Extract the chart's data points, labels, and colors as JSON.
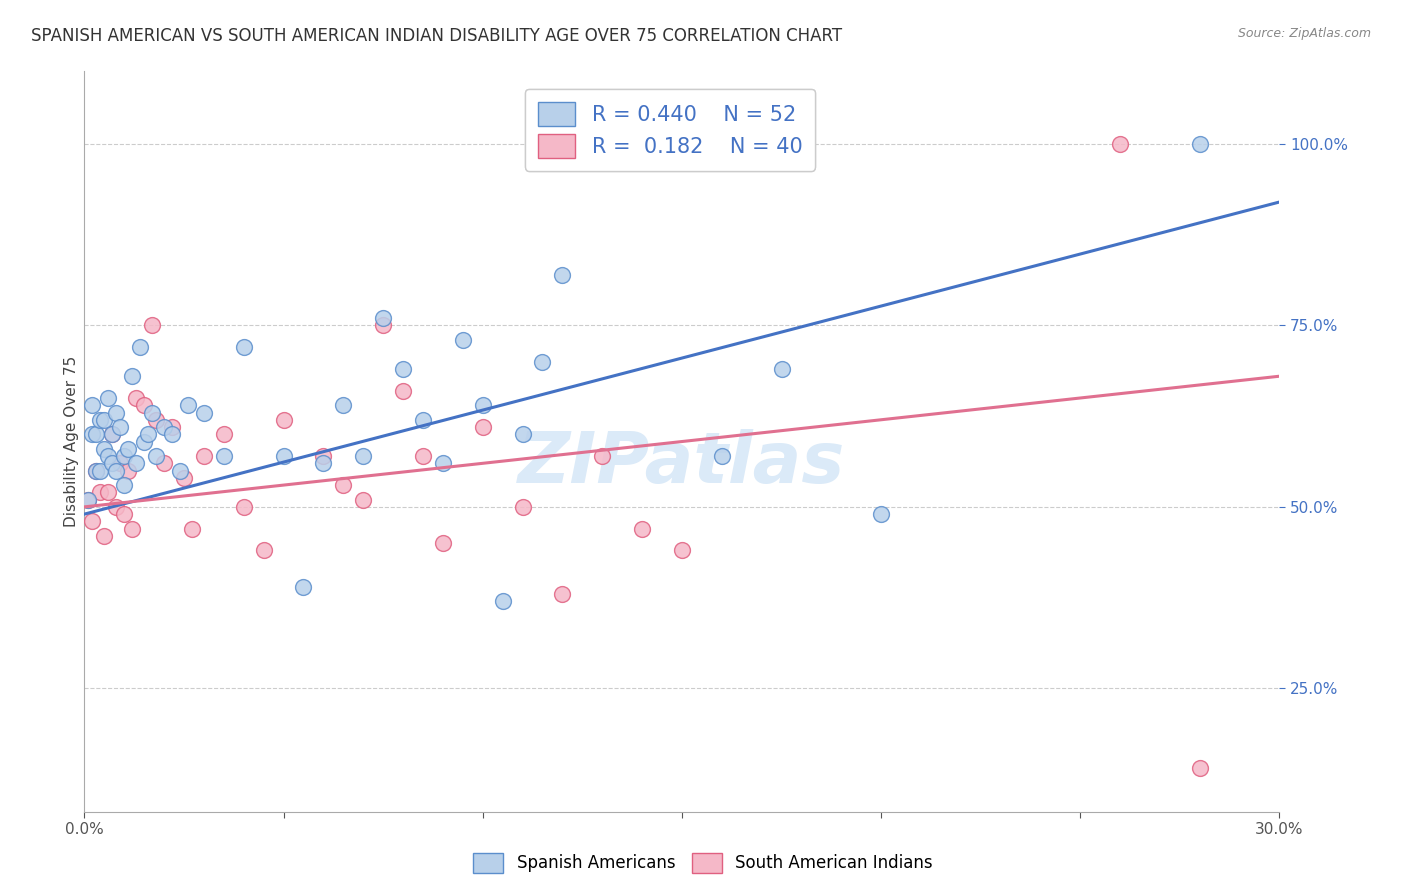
{
  "title": "SPANISH AMERICAN VS SOUTH AMERICAN INDIAN DISABILITY AGE OVER 75 CORRELATION CHART",
  "source": "Source: ZipAtlas.com",
  "ylabel": "Disability Age Over 75",
  "xlim": [
    0.0,
    0.3
  ],
  "ylim": [
    0.08,
    1.1
  ],
  "xtick_vals": [
    0.0,
    0.05,
    0.1,
    0.15,
    0.2,
    0.25,
    0.3
  ],
  "xtick_labels_shown": [
    "0.0%",
    "",
    "",
    "",
    "",
    "",
    "30.0%"
  ],
  "ytick_vals": [
    0.25,
    0.5,
    0.75,
    1.0
  ],
  "ytick_labels": [
    "25.0%",
    "50.0%",
    "75.0%",
    "100.0%"
  ],
  "blue_color": "#b8d0ea",
  "pink_color": "#f5b8c8",
  "blue_edge_color": "#5b8ecc",
  "pink_edge_color": "#e06080",
  "blue_line_color": "#4472c4",
  "pink_line_color": "#e07090",
  "blue_R": 0.44,
  "blue_N": 52,
  "pink_R": 0.182,
  "pink_N": 40,
  "legend_label_blue": "Spanish Americans",
  "legend_label_pink": "South American Indians",
  "watermark": "ZIPatlas",
  "blue_x": [
    0.001,
    0.002,
    0.002,
    0.003,
    0.003,
    0.004,
    0.004,
    0.005,
    0.005,
    0.006,
    0.006,
    0.007,
    0.007,
    0.008,
    0.008,
    0.009,
    0.01,
    0.01,
    0.011,
    0.012,
    0.013,
    0.014,
    0.015,
    0.016,
    0.017,
    0.018,
    0.02,
    0.022,
    0.024,
    0.026,
    0.03,
    0.035,
    0.04,
    0.05,
    0.055,
    0.06,
    0.065,
    0.07,
    0.075,
    0.08,
    0.085,
    0.09,
    0.095,
    0.1,
    0.105,
    0.11,
    0.115,
    0.12,
    0.16,
    0.175,
    0.2,
    0.28
  ],
  "blue_y": [
    0.51,
    0.6,
    0.64,
    0.55,
    0.6,
    0.62,
    0.55,
    0.62,
    0.58,
    0.65,
    0.57,
    0.6,
    0.56,
    0.63,
    0.55,
    0.61,
    0.53,
    0.57,
    0.58,
    0.68,
    0.56,
    0.72,
    0.59,
    0.6,
    0.63,
    0.57,
    0.61,
    0.6,
    0.55,
    0.64,
    0.63,
    0.57,
    0.72,
    0.57,
    0.39,
    0.56,
    0.64,
    0.57,
    0.76,
    0.69,
    0.62,
    0.56,
    0.73,
    0.64,
    0.37,
    0.6,
    0.7,
    0.82,
    0.57,
    0.69,
    0.49,
    1.0
  ],
  "pink_x": [
    0.001,
    0.002,
    0.003,
    0.004,
    0.005,
    0.006,
    0.007,
    0.008,
    0.009,
    0.01,
    0.011,
    0.012,
    0.013,
    0.015,
    0.017,
    0.018,
    0.02,
    0.022,
    0.025,
    0.027,
    0.03,
    0.035,
    0.04,
    0.045,
    0.05,
    0.06,
    0.065,
    0.07,
    0.075,
    0.08,
    0.085,
    0.09,
    0.1,
    0.11,
    0.12,
    0.13,
    0.14,
    0.15,
    0.26,
    0.28
  ],
  "pink_y": [
    0.51,
    0.48,
    0.55,
    0.52,
    0.46,
    0.52,
    0.6,
    0.5,
    0.56,
    0.49,
    0.55,
    0.47,
    0.65,
    0.64,
    0.75,
    0.62,
    0.56,
    0.61,
    0.54,
    0.47,
    0.57,
    0.6,
    0.5,
    0.44,
    0.62,
    0.57,
    0.53,
    0.51,
    0.75,
    0.66,
    0.57,
    0.45,
    0.61,
    0.5,
    0.38,
    0.57,
    0.47,
    0.44,
    1.0,
    0.14
  ],
  "blue_trendline_x": [
    0.0,
    0.3
  ],
  "blue_trendline_y": [
    0.49,
    0.92
  ],
  "pink_trendline_x": [
    0.0,
    0.3
  ],
  "pink_trendline_y": [
    0.5,
    0.68
  ],
  "title_fontsize": 12,
  "source_fontsize": 9,
  "axis_label_fontsize": 11,
  "tick_fontsize": 11,
  "legend_fontsize": 15,
  "watermark_fontsize": 52,
  "watermark_color": "#dbeaf8",
  "background_color": "#ffffff",
  "grid_color": "#cccccc",
  "marker_size": 130
}
